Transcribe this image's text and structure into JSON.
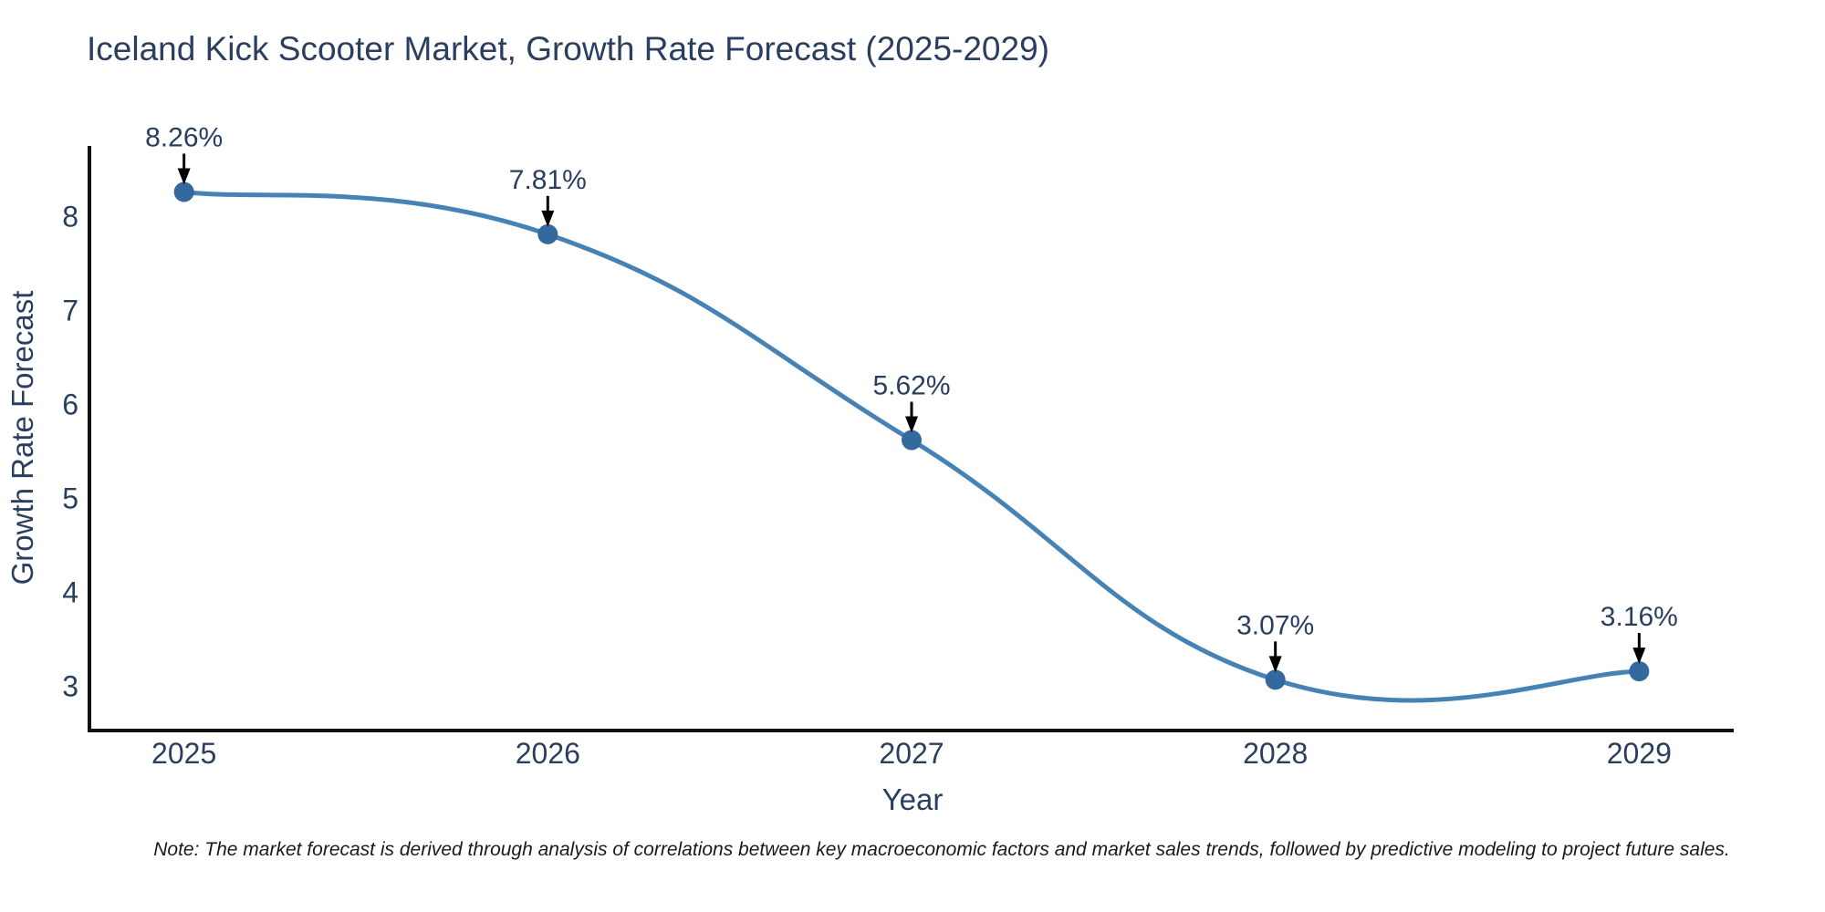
{
  "note": "Note: The market forecast is derived through analysis of correlations between key macroeconomic factors and market sales trends, followed by predictive modeling to project future sales.",
  "chart_data": {
    "type": "line",
    "line_shape": "spline",
    "title": "Iceland Kick Scooter Market, Growth Rate Forecast (2025-2029)",
    "xlabel": "Year",
    "ylabel": "Growth Rate Forecast",
    "x": [
      2025,
      2026,
      2027,
      2028,
      2029
    ],
    "values": [
      8.26,
      7.81,
      5.62,
      3.07,
      3.16
    ],
    "point_labels": [
      "8.26%",
      "7.81%",
      "5.62%",
      "3.07%",
      "3.16%"
    ],
    "x_tick_labels": [
      "2025",
      "2026",
      "2027",
      "2028",
      "2029"
    ],
    "y_ticks": [
      3,
      4,
      5,
      6,
      7,
      8
    ],
    "xlim": [
      2024.74,
      2029.26
    ],
    "ylim": [
      2.53,
      8.75
    ],
    "grid": false,
    "legend": false,
    "markers": true,
    "annotations_have_arrows": true,
    "colors": {
      "line": "#4682b4",
      "marker": "#34699d",
      "axis_line": "#111111",
      "text": "#2a3f5f",
      "annotation_text": "#2a3f5f",
      "arrow": "#000000",
      "background": "#ffffff"
    }
  }
}
